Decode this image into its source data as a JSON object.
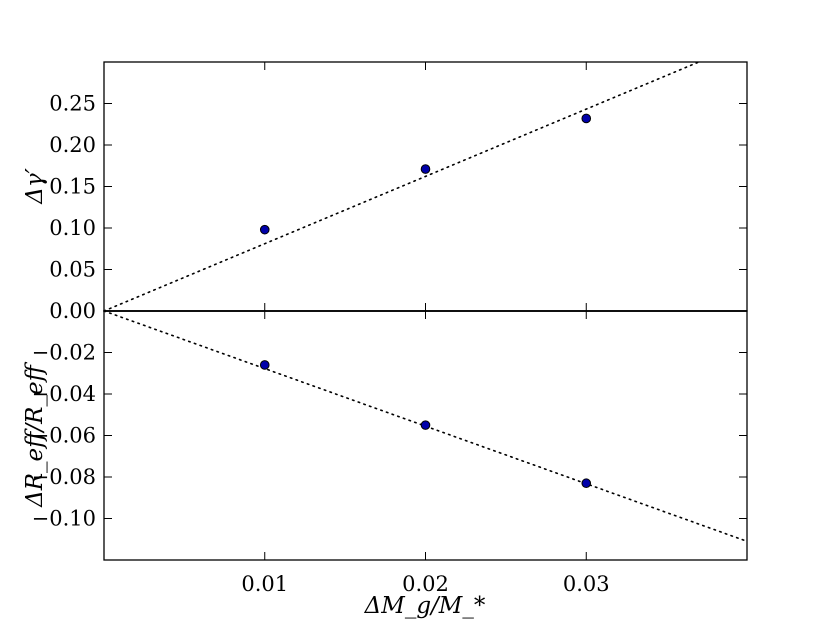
{
  "chart_data": [
    {
      "type": "scatter",
      "title": "",
      "xlabel": "",
      "ylabel": "Δγ′",
      "xlim": [
        0.0,
        0.04
      ],
      "ylim": [
        0.0,
        0.3
      ],
      "yticks": [
        0.0,
        0.05,
        0.1,
        0.15,
        0.2,
        0.25
      ],
      "ytick_labels": [
        "0.00",
        "0.05",
        "0.10",
        "0.15",
        "0.20",
        "0.25"
      ],
      "grid": false,
      "series": [
        {
          "x": [
            0.01,
            0.02,
            0.03
          ],
          "y": [
            0.098,
            0.171,
            0.232
          ],
          "marker": "circle",
          "color": "#0000aa"
        }
      ],
      "fit_line": {
        "style": "dotted",
        "color": "#000000",
        "x": [
          0.0,
          0.037
        ],
        "y": [
          0.0,
          0.3
        ]
      }
    },
    {
      "type": "scatter",
      "title": "",
      "xlabel": "ΔM_g/M_*",
      "ylabel": "ΔR_eff/R_eff",
      "xlim": [
        0.0,
        0.04
      ],
      "ylim": [
        -0.12,
        0.0
      ],
      "xticks": [
        0.01,
        0.02,
        0.03
      ],
      "xtick_labels": [
        "0.01",
        "0.02",
        "0.03"
      ],
      "yticks": [
        -0.02,
        -0.04,
        -0.06,
        -0.08,
        -0.1
      ],
      "ytick_labels": [
        "−0.02",
        "−0.04",
        "−0.06",
        "−0.08",
        "−0.10"
      ],
      "grid": false,
      "series": [
        {
          "x": [
            0.01,
            0.02,
            0.03
          ],
          "y": [
            -0.026,
            -0.055,
            -0.083
          ],
          "marker": "circle",
          "color": "#0000aa"
        }
      ],
      "fit_line": {
        "style": "dotted",
        "color": "#000000",
        "x": [
          0.0,
          0.04
        ],
        "y": [
          0.0,
          -0.111
        ]
      }
    }
  ]
}
